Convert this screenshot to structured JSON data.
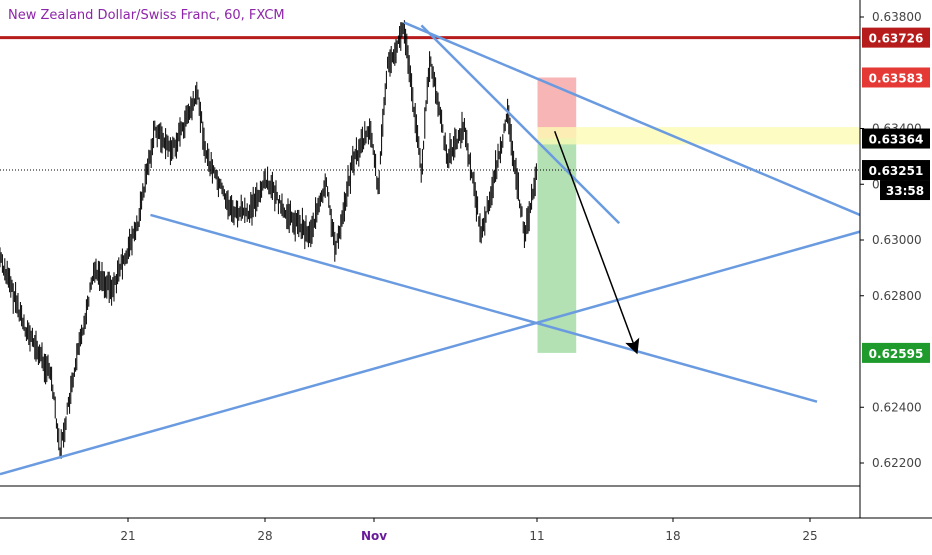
{
  "chart_data": {
    "type": "candlestick",
    "title": "New Zealand Dollar/Swiss Franc, 60, FXCM",
    "xlabel": "",
    "ylabel": "",
    "ylim": [
      0.6214,
      0.6382
    ],
    "x_ticks": [
      {
        "label": "21",
        "bold": false
      },
      {
        "label": "28",
        "bold": false
      },
      {
        "label": "Nov",
        "bold": true
      },
      {
        "label": "11",
        "bold": false
      },
      {
        "label": "18",
        "bold": false
      },
      {
        "label": "25",
        "bold": false
      }
    ],
    "y_ticks": [
      0.638,
      0.634,
      0.632,
      0.63,
      0.628,
      0.624,
      0.622
    ],
    "y_tick_labels": [
      "0.63800",
      "0.63400",
      "0.63200",
      "0.63000",
      "0.62800",
      "0.62400",
      "0.62200"
    ],
    "y_tick_labels_obscured": {
      "0.63400": "0.63400",
      "0.63200": "0"
    },
    "price_series": {
      "name": "",
      "approx_path": [
        {
          "t": 0,
          "y": 0.6294
        },
        {
          "t": 0.03,
          "y": 0.6268
        },
        {
          "t": 0.06,
          "y": 0.6251
        },
        {
          "t": 0.07,
          "y": 0.6224
        },
        {
          "t": 0.09,
          "y": 0.6258
        },
        {
          "t": 0.11,
          "y": 0.629
        },
        {
          "t": 0.13,
          "y": 0.6282
        },
        {
          "t": 0.16,
          "y": 0.6305
        },
        {
          "t": 0.18,
          "y": 0.634
        },
        {
          "t": 0.2,
          "y": 0.6332
        },
        {
          "t": 0.23,
          "y": 0.6352
        },
        {
          "t": 0.24,
          "y": 0.633
        },
        {
          "t": 0.27,
          "y": 0.631
        },
        {
          "t": 0.29,
          "y": 0.631
        },
        {
          "t": 0.31,
          "y": 0.6322
        },
        {
          "t": 0.33,
          "y": 0.631
        },
        {
          "t": 0.36,
          "y": 0.6302
        },
        {
          "t": 0.38,
          "y": 0.632
        },
        {
          "t": 0.39,
          "y": 0.6296
        },
        {
          "t": 0.41,
          "y": 0.6328
        },
        {
          "t": 0.43,
          "y": 0.634
        },
        {
          "t": 0.44,
          "y": 0.6318
        },
        {
          "t": 0.45,
          "y": 0.6362
        },
        {
          "t": 0.47,
          "y": 0.6376
        },
        {
          "t": 0.49,
          "y": 0.6325
        },
        {
          "t": 0.5,
          "y": 0.6365
        },
        {
          "t": 0.52,
          "y": 0.633
        },
        {
          "t": 0.54,
          "y": 0.634
        },
        {
          "t": 0.56,
          "y": 0.6302
        },
        {
          "t": 0.58,
          "y": 0.633
        },
        {
          "t": 0.59,
          "y": 0.6345
        },
        {
          "t": 0.61,
          "y": 0.6302
        },
        {
          "t": 0.625,
          "y": 0.6325
        }
      ],
      "color": "#000000"
    },
    "trend_lines": [
      {
        "name": "",
        "from": {
          "t": 0.0,
          "y": 0.6216
        },
        "to": {
          "t": 1.0,
          "y": 0.6303
        },
        "color": "#6a9be0"
      },
      {
        "name": "",
        "from": {
          "t": 0.175,
          "y": 0.6309
        },
        "to": {
          "t": 0.95,
          "y": 0.6242
        },
        "color": "#6a9be0"
      },
      {
        "name": "",
        "from": {
          "t": 0.47,
          "y": 0.6378
        },
        "to": {
          "t": 1.0,
          "y": 0.6309
        },
        "color": "#6a9be0"
      },
      {
        "name": "",
        "from": {
          "t": 0.49,
          "y": 0.6377
        },
        "to": {
          "t": 0.72,
          "y": 0.6306
        },
        "color": "#6a9be0"
      }
    ],
    "horizontal_level": {
      "y": 0.63726,
      "color": "#b71c1c"
    },
    "current_price_line": {
      "y": 0.63251
    },
    "position_tool": {
      "t_start": 0.625,
      "t_end": 0.67,
      "stop": 0.63583,
      "entry": 0.63364,
      "target": 0.62595,
      "loss_color": "#f7a8a8",
      "profit_color": "#a6dca6"
    },
    "highlight_band": {
      "y_low": 0.63343,
      "y_high": 0.63405,
      "t_start": 0.625,
      "t_end": 1.0,
      "color": "#fbfbb4"
    },
    "arrow": {
      "from": {
        "t": 0.645,
        "y": 0.6339
      },
      "to": {
        "t": 0.74,
        "y": 0.626
      }
    },
    "price_labels": [
      {
        "text": "0.63726",
        "y": 0.63726,
        "bg": "#b71c1c",
        "fg": "#ffffff"
      },
      {
        "text": "0.63583",
        "y": 0.63583,
        "bg": "#e53935",
        "fg": "#ffffff"
      },
      {
        "text": "0.63364",
        "y": 0.63364,
        "bg": "#000000",
        "fg": "#ffffff"
      },
      {
        "text": "0.63251",
        "y": 0.63251,
        "bg": "#000000",
        "fg": "#ffffff"
      },
      {
        "text": "0.62595",
        "y": 0.62595,
        "bg": "#1e9b2c",
        "fg": "#ffffff"
      }
    ],
    "countdown": {
      "text": "33:58",
      "bg": "#000000",
      "fg": "#ffffff"
    },
    "grid": false,
    "legend": "none"
  }
}
